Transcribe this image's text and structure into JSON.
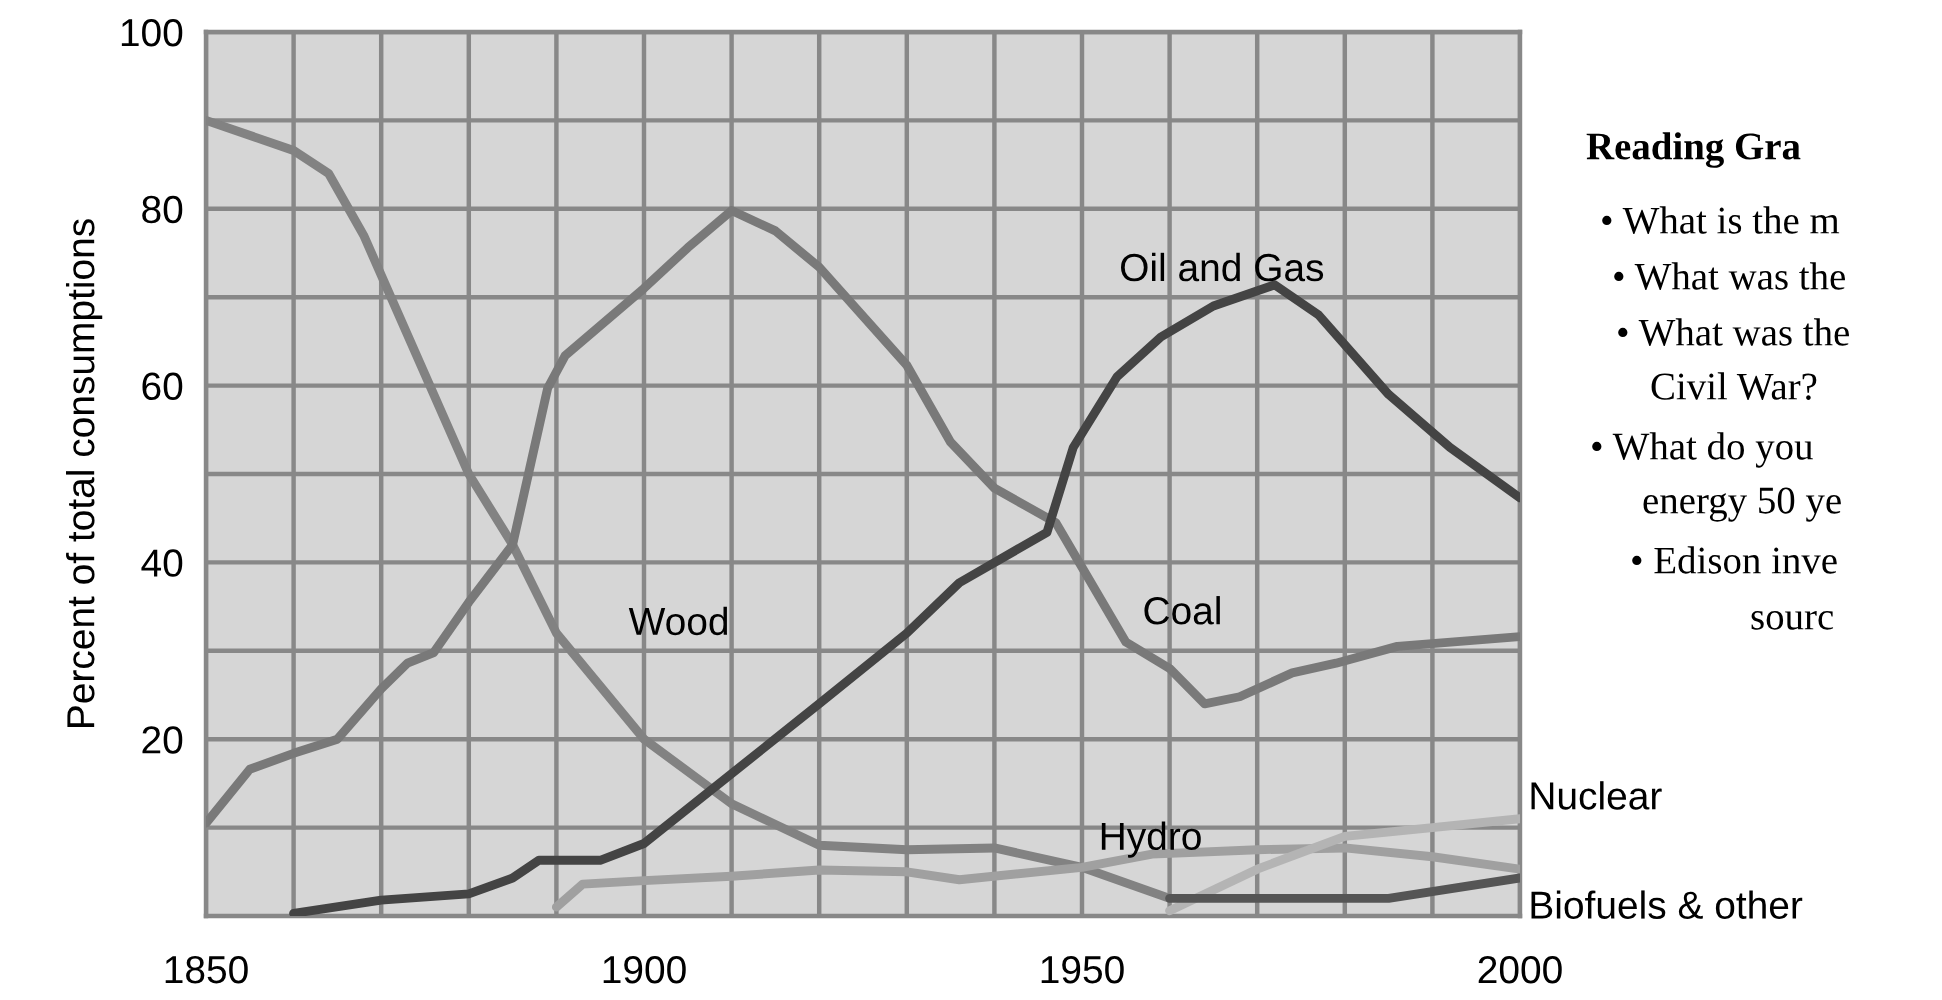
{
  "chart_data": {
    "type": "line",
    "ylabel": "Percent of total consumptions",
    "xlim": [
      1850,
      2000
    ],
    "ylim": [
      0,
      100
    ],
    "xticks": [
      1850,
      {
        "value": 1860,
        "label": null
      },
      {
        "value": 1870,
        "label": null
      },
      {
        "value": 1880,
        "label": null
      },
      {
        "value": 1890,
        "label": null
      },
      1900,
      {
        "value": 1910,
        "label": null
      },
      {
        "value": 1920,
        "label": null
      },
      {
        "value": 1930,
        "label": null
      },
      {
        "value": 1940,
        "label": null
      },
      1950,
      {
        "value": 1960,
        "label": null
      },
      {
        "value": 1970,
        "label": null
      },
      {
        "value": 1980,
        "label": null
      },
      {
        "value": 1990,
        "label": null
      },
      2000
    ],
    "yticks": [
      {
        "value": 10,
        "label": null
      },
      20,
      {
        "value": 30,
        "label": null
      },
      40,
      {
        "value": 50,
        "label": null
      },
      60,
      {
        "value": 70,
        "label": null
      },
      80,
      {
        "value": 90,
        "label": null
      },
      100
    ],
    "grid": true,
    "legend": false,
    "marker": "none",
    "line_style": "solid",
    "series": [
      {
        "name": "Wood",
        "color": "#828282",
        "x": [
          1850,
          1860,
          1864,
          1868,
          1880,
          1885,
          1890,
          1900,
          1910,
          1920,
          1930,
          1940,
          1950,
          1960
        ],
        "values": [
          90,
          86.6,
          84,
          77,
          50,
          42,
          32,
          20,
          12.7,
          8,
          7.5,
          7.7,
          5.5,
          2
        ]
      },
      {
        "name": "Coal",
        "color": "#797979",
        "x": [
          1850,
          1855,
          1860,
          1865,
          1870,
          1873,
          1876,
          1880,
          1885,
          1889,
          1891,
          1900,
          1905,
          1910,
          1915,
          1920,
          1930,
          1935,
          1940,
          1947,
          1955,
          1960,
          1964,
          1968,
          1974,
          1979,
          1986,
          2000
        ],
        "values": [
          10.5,
          16.6,
          18.4,
          20,
          25.7,
          28.6,
          29.8,
          35.5,
          42,
          59.7,
          63.4,
          71,
          75.6,
          79.8,
          77.5,
          73.4,
          62.3,
          53.6,
          48.4,
          44.5,
          31,
          28,
          24,
          24.8,
          27.5,
          28.6,
          30.5,
          31.6
        ]
      },
      {
        "name": "Oil and Gas",
        "color": "#444444",
        "x": [
          1860,
          1870,
          1880,
          1885,
          1888,
          1895,
          1900,
          1920,
          1930,
          1936,
          1946,
          1949,
          1954,
          1959,
          1965,
          1972,
          1977,
          1985,
          1992,
          2000
        ],
        "values": [
          0.3,
          1.8,
          2.5,
          4.3,
          6.3,
          6.3,
          8.2,
          24,
          32,
          37.7,
          43.4,
          53,
          61,
          65.5,
          69,
          71.4,
          68,
          59,
          53,
          47.3
        ]
      },
      {
        "name": "Hydro",
        "color": "#a0a0a0",
        "x": [
          1890,
          1893,
          1900,
          1910,
          1920,
          1930,
          1936,
          1950,
          1958,
          1970,
          1980,
          1990,
          2000
        ],
        "values": [
          1,
          3.6,
          4,
          4.5,
          5.2,
          5,
          4.1,
          5.5,
          7,
          7.5,
          7.7,
          6.7,
          5.3
        ]
      },
      {
        "name": "Nuclear",
        "color": "#b4b4b4",
        "x": [
          1960,
          1970,
          1980,
          1990,
          2000
        ],
        "values": [
          0.6,
          5.3,
          9,
          10,
          11
        ]
      },
      {
        "name": "Biofuels & other",
        "color": "#555555",
        "x": [
          1960,
          1985,
          2000
        ],
        "values": [
          2,
          2,
          4.3
        ]
      }
    ],
    "annotations": [
      "Reading Gra",
      "• What is the m",
      "• What was the",
      "• What was the",
      "Civil War?",
      "• What do you",
      "energy 50 ye",
      "• Edison inve",
      "sourc"
    ]
  }
}
